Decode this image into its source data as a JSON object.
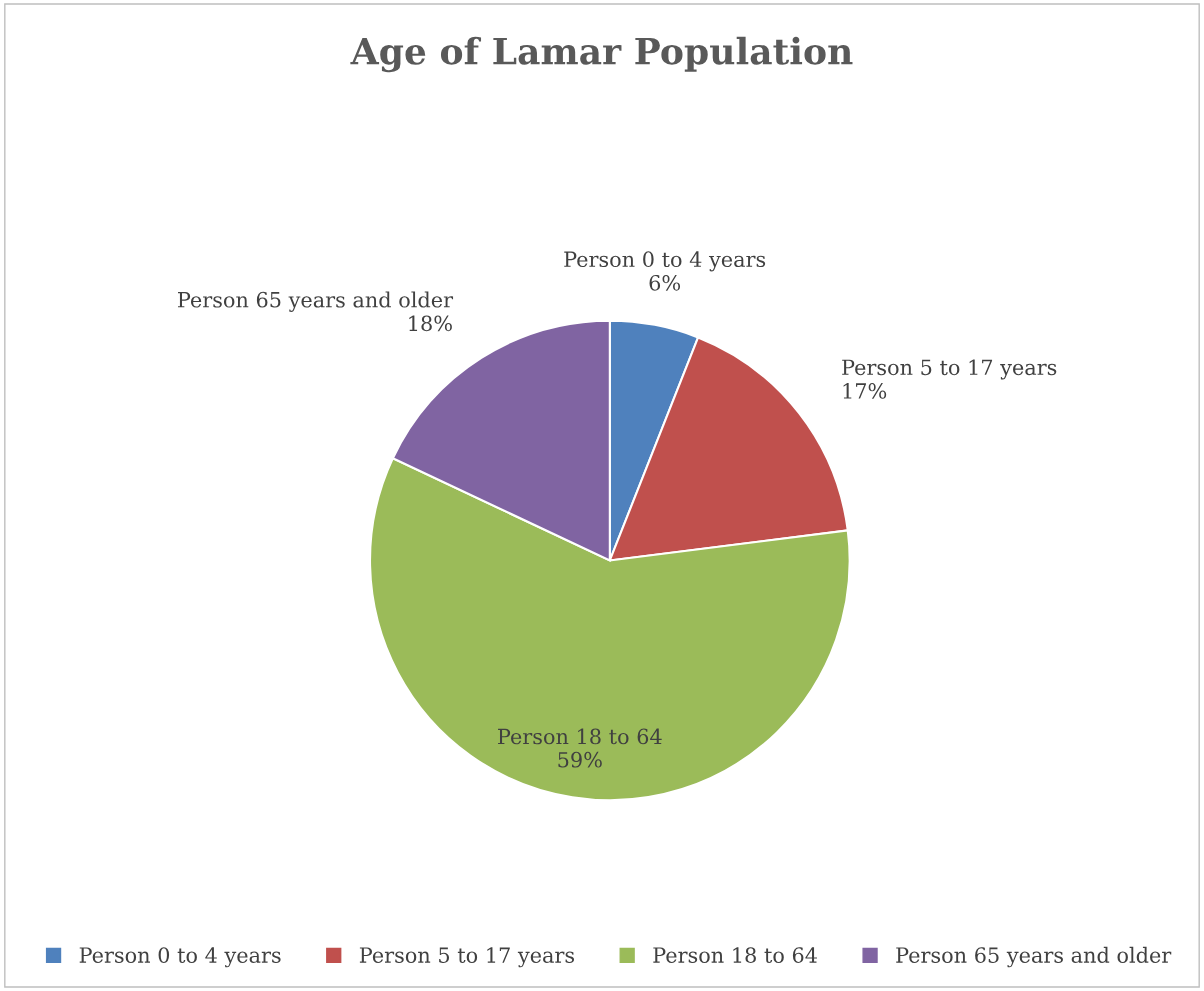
{
  "chart_data": {
    "type": "pie",
    "title": "Age of Lamar Population",
    "categories": [
      "Person 0 to 4 years",
      "Person 5 to 17 years",
      "Person 18 to 64",
      "Person 65 years and older"
    ],
    "values": [
      6,
      17,
      59,
      18
    ],
    "value_labels": [
      "6%",
      "17%",
      "59%",
      "18%"
    ],
    "colors": [
      "#4f81bd",
      "#c0504d",
      "#9bbb59",
      "#8064a2"
    ],
    "legend": "bottom"
  }
}
